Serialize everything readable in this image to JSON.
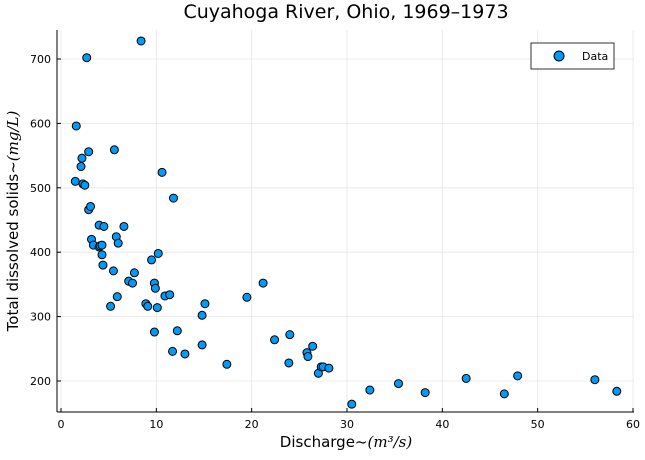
{
  "chart_data": {
    "type": "scatter",
    "title": "Cuyahoga River, Ohio, 1969–1973",
    "xlabel_prefix": "Discharge~",
    "xlabel_math": "(m³/s)",
    "ylabel_prefix": "Total dissolved solids~",
    "ylabel_math": "(mg/L)",
    "xlim": [
      0,
      60
    ],
    "ylim": [
      150,
      745
    ],
    "xticks": [
      0,
      10,
      20,
      30,
      40,
      50,
      60
    ],
    "yticks": [
      200,
      300,
      400,
      500,
      600,
      700
    ],
    "grid": true,
    "legend_position": "top-right",
    "series": [
      {
        "name": "Data",
        "color": "#009AFA",
        "points": [
          [
            1.5,
            510
          ],
          [
            1.6,
            596
          ],
          [
            2.1,
            533
          ],
          [
            2.2,
            546
          ],
          [
            2.3,
            506
          ],
          [
            2.5,
            504
          ],
          [
            2.7,
            702
          ],
          [
            2.9,
            466
          ],
          [
            2.9,
            556
          ],
          [
            3.1,
            471
          ],
          [
            3.2,
            420
          ],
          [
            3.4,
            411
          ],
          [
            4.0,
            442
          ],
          [
            4.0,
            408
          ],
          [
            4.1,
            410
          ],
          [
            4.3,
            411
          ],
          [
            4.3,
            396
          ],
          [
            4.4,
            380
          ],
          [
            4.5,
            440
          ],
          [
            5.2,
            316
          ],
          [
            5.5,
            371
          ],
          [
            5.6,
            559
          ],
          [
            5.8,
            424
          ],
          [
            5.9,
            331
          ],
          [
            6.0,
            414
          ],
          [
            6.6,
            440
          ],
          [
            7.1,
            355
          ],
          [
            7.5,
            352
          ],
          [
            7.7,
            368
          ],
          [
            8.4,
            728
          ],
          [
            8.9,
            320
          ],
          [
            9.1,
            316
          ],
          [
            9.5,
            388
          ],
          [
            9.8,
            352
          ],
          [
            9.8,
            276
          ],
          [
            9.9,
            344
          ],
          [
            10.1,
            314
          ],
          [
            10.2,
            398
          ],
          [
            10.6,
            524
          ],
          [
            10.9,
            332
          ],
          [
            11.4,
            334
          ],
          [
            11.7,
            246
          ],
          [
            11.8,
            484
          ],
          [
            12.2,
            278
          ],
          [
            13.0,
            242
          ],
          [
            14.8,
            256
          ],
          [
            14.8,
            302
          ],
          [
            15.1,
            320
          ],
          [
            17.4,
            226
          ],
          [
            19.5,
            330
          ],
          [
            21.2,
            352
          ],
          [
            22.4,
            264
          ],
          [
            23.9,
            228
          ],
          [
            24.0,
            272
          ],
          [
            25.8,
            244
          ],
          [
            25.9,
            238
          ],
          [
            26.4,
            254
          ],
          [
            27.0,
            212
          ],
          [
            27.3,
            222
          ],
          [
            27.5,
            222
          ],
          [
            28.1,
            220
          ],
          [
            30.5,
            164
          ],
          [
            32.4,
            186
          ],
          [
            35.4,
            196
          ],
          [
            38.2,
            182
          ],
          [
            42.5,
            204
          ],
          [
            46.5,
            180
          ],
          [
            47.9,
            208
          ],
          [
            56.0,
            202
          ],
          [
            58.3,
            184
          ]
        ]
      }
    ]
  }
}
